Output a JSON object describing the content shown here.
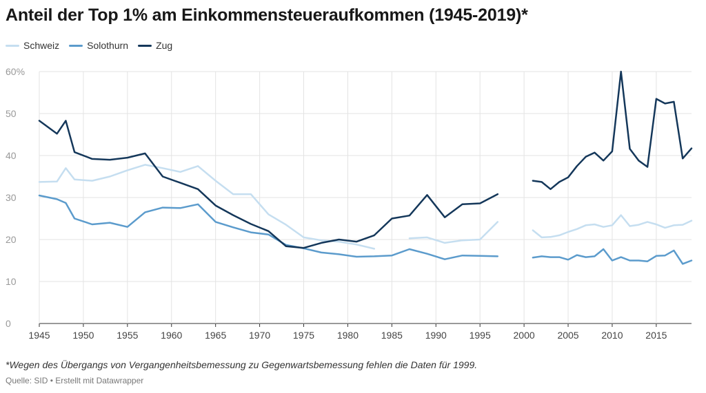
{
  "chart_data": {
    "type": "line",
    "title": "Anteil der Top 1% am Einkommensteueraufkommen (1945-2019)*",
    "y_ticks": [
      {
        "value": 0,
        "label": "0"
      },
      {
        "value": 10,
        "label": "10"
      },
      {
        "value": 20,
        "label": "20"
      },
      {
        "value": 30,
        "label": "30"
      },
      {
        "value": 40,
        "label": "40"
      },
      {
        "value": 50,
        "label": "50"
      },
      {
        "value": 60,
        "label": "60%"
      }
    ],
    "x_ticks": [
      1945,
      1950,
      1955,
      1960,
      1965,
      1970,
      1975,
      1980,
      1985,
      1990,
      1995,
      2000,
      2005,
      2010,
      2015
    ],
    "xlim": [
      1945,
      2019
    ],
    "ylim": [
      0,
      60
    ],
    "grid": true,
    "legend_position": "top-left",
    "series": [
      {
        "name": "Schweiz",
        "color": "#c5def0",
        "points": [
          [
            1945,
            33.7
          ],
          [
            1947,
            33.8
          ],
          [
            1948,
            37.0
          ],
          [
            1949,
            34.3
          ],
          [
            1951,
            34.0
          ],
          [
            1953,
            35.0
          ],
          [
            1955,
            36.5
          ],
          [
            1957,
            37.8
          ],
          [
            1959,
            37.0
          ],
          [
            1961,
            36.1
          ],
          [
            1963,
            37.5
          ],
          [
            1965,
            34.0
          ],
          [
            1967,
            30.8
          ],
          [
            1969,
            30.8
          ],
          [
            1971,
            26.0
          ],
          [
            1973,
            23.5
          ],
          [
            1975,
            20.5
          ],
          [
            1977,
            19.8
          ],
          [
            1979,
            19.5
          ],
          [
            1981,
            18.8
          ],
          [
            1983,
            17.8
          ],
          null,
          [
            1987,
            20.3
          ],
          [
            1989,
            20.5
          ],
          [
            1991,
            19.2
          ],
          [
            1993,
            19.8
          ],
          [
            1995,
            20.0
          ],
          [
            1997,
            24.2
          ],
          null,
          [
            2001,
            22.2
          ],
          [
            2002,
            20.5
          ],
          [
            2003,
            20.6
          ],
          [
            2004,
            21.0
          ],
          [
            2005,
            21.8
          ],
          [
            2006,
            22.5
          ],
          [
            2007,
            23.4
          ],
          [
            2008,
            23.6
          ],
          [
            2009,
            23.0
          ],
          [
            2010,
            23.4
          ],
          [
            2011,
            25.8
          ],
          [
            2012,
            23.2
          ],
          [
            2013,
            23.5
          ],
          [
            2014,
            24.2
          ],
          [
            2015,
            23.6
          ],
          [
            2016,
            22.8
          ],
          [
            2017,
            23.4
          ],
          [
            2018,
            23.5
          ],
          [
            2019,
            24.5
          ]
        ]
      },
      {
        "name": "Solothurn",
        "color": "#5b9bcc",
        "points": [
          [
            1945,
            30.5
          ],
          [
            1947,
            29.6
          ],
          [
            1948,
            28.7
          ],
          [
            1949,
            25.0
          ],
          [
            1951,
            23.6
          ],
          [
            1953,
            24.0
          ],
          [
            1955,
            23.0
          ],
          [
            1957,
            26.5
          ],
          [
            1959,
            27.6
          ],
          [
            1961,
            27.5
          ],
          [
            1963,
            28.4
          ],
          [
            1965,
            24.2
          ],
          [
            1967,
            22.9
          ],
          [
            1969,
            21.7
          ],
          [
            1971,
            21.2
          ],
          [
            1973,
            18.7
          ],
          [
            1975,
            17.9
          ],
          [
            1977,
            16.9
          ],
          [
            1979,
            16.5
          ],
          [
            1981,
            15.9
          ],
          [
            1983,
            16.0
          ],
          [
            1985,
            16.2
          ],
          [
            1987,
            17.7
          ],
          [
            1989,
            16.6
          ],
          [
            1991,
            15.3
          ],
          [
            1993,
            16.2
          ],
          [
            1995,
            16.1
          ],
          [
            1997,
            16.0
          ],
          null,
          [
            2001,
            15.7
          ],
          [
            2002,
            16.0
          ],
          [
            2003,
            15.8
          ],
          [
            2004,
            15.8
          ],
          [
            2005,
            15.2
          ],
          [
            2006,
            16.3
          ],
          [
            2007,
            15.8
          ],
          [
            2008,
            16.0
          ],
          [
            2009,
            17.7
          ],
          [
            2010,
            15.0
          ],
          [
            2011,
            15.8
          ],
          [
            2012,
            15.0
          ],
          [
            2013,
            15.0
          ],
          [
            2014,
            14.8
          ],
          [
            2015,
            16.1
          ],
          [
            2016,
            16.2
          ],
          [
            2017,
            17.4
          ],
          [
            2018,
            14.2
          ],
          [
            2019,
            15.0
          ]
        ]
      },
      {
        "name": "Zug",
        "color": "#14375a",
        "points": [
          [
            1945,
            48.3
          ],
          [
            1947,
            45.2
          ],
          [
            1948,
            48.3
          ],
          [
            1949,
            40.8
          ],
          [
            1951,
            39.2
          ],
          [
            1953,
            39.0
          ],
          [
            1955,
            39.5
          ],
          [
            1957,
            40.5
          ],
          [
            1959,
            35.0
          ],
          [
            1961,
            33.5
          ],
          [
            1963,
            32.0
          ],
          [
            1965,
            28.1
          ],
          [
            1967,
            25.8
          ],
          [
            1969,
            23.7
          ],
          [
            1971,
            22.0
          ],
          [
            1973,
            18.4
          ],
          [
            1975,
            18.0
          ],
          [
            1977,
            19.2
          ],
          [
            1979,
            20.0
          ],
          [
            1981,
            19.5
          ],
          [
            1983,
            21.0
          ],
          [
            1985,
            25.0
          ],
          [
            1987,
            25.7
          ],
          [
            1989,
            30.6
          ],
          [
            1991,
            25.3
          ],
          [
            1993,
            28.4
          ],
          [
            1995,
            28.6
          ],
          [
            1997,
            30.8
          ],
          null,
          [
            2001,
            34.0
          ],
          [
            2002,
            33.7
          ],
          [
            2003,
            32.0
          ],
          [
            2004,
            33.7
          ],
          [
            2005,
            34.8
          ],
          [
            2006,
            37.5
          ],
          [
            2007,
            39.7
          ],
          [
            2008,
            40.7
          ],
          [
            2009,
            38.8
          ],
          [
            2010,
            41.0
          ],
          [
            2011,
            60.0
          ],
          [
            2012,
            41.6
          ],
          [
            2013,
            38.8
          ],
          [
            2014,
            37.3
          ],
          [
            2015,
            53.5
          ],
          [
            2016,
            52.4
          ],
          [
            2017,
            52.8
          ],
          [
            2018,
            39.3
          ],
          [
            2019,
            41.7
          ]
        ]
      }
    ]
  },
  "note": "*Wegen des Übergangs von Vergangenheitsbemessung zu Gegenwartsbemessung fehlen die Daten für 1999.",
  "source": "Quelle: SID • Erstellt mit Datawrapper"
}
